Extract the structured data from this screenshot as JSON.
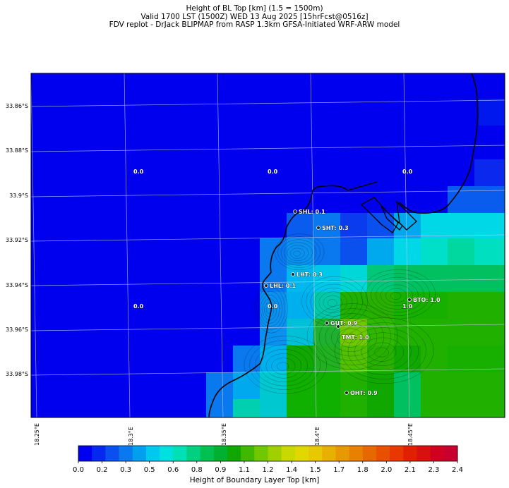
{
  "titles": {
    "line1": "Height of BL Top [km] (1.5 = 1500m)",
    "line2": "Valid 1700 LST (1500Z) WED 13 Aug 2025 [15hrFcst@0516z]",
    "line3": "FDV replot - DrJack BLIPMAP from RASP 1.3km GFSA-Initiated WRF-ARW model"
  },
  "lat_labels": [
    "33.86°S",
    "33.88°S",
    "33.9°S",
    "33.92°S",
    "33.94°S",
    "33.96°S",
    "33.98°S"
  ],
  "lon_labels": [
    "18.25°E",
    "18.3°E",
    "18.35°E",
    "18.4°E",
    "18.45°E"
  ],
  "grid_values": [
    "0.0",
    "0.0",
    "0.0",
    "0.0",
    "0.0",
    "1.0"
  ],
  "sites": [
    {
      "label": "SHL: 0.1"
    },
    {
      "label": "SHT: 0.3"
    },
    {
      "label": "LHT: 0.3"
    },
    {
      "label": "LHL: 0.1"
    },
    {
      "label": "BTO: 1.0"
    },
    {
      "label": "GUT: 0.9"
    },
    {
      "label": "TMT: 1.0"
    },
    {
      "label": "OHT: 0.9"
    }
  ],
  "colorbar": {
    "title": "Height of Boundary Layer Top [km]",
    "ticks": [
      "0.0",
      "0.2",
      "0.3",
      "0.5",
      "0.6",
      "0.8",
      "0.9",
      "1.1",
      "1.2",
      "1.4",
      "1.5",
      "1.7",
      "1.8",
      "2.0",
      "2.1",
      "2.3",
      "2.4"
    ],
    "colors": [
      "#0000ee",
      "#0528ee",
      "#0a50ee",
      "#0a78ee",
      "#00a0ee",
      "#00c8ee",
      "#00e0e0",
      "#00e0b4",
      "#00d080",
      "#00c050",
      "#00b030",
      "#10a800",
      "#40b800",
      "#70c800",
      "#a0d000",
      "#c8d800",
      "#e0d800",
      "#e8c800",
      "#e8b000",
      "#e89800",
      "#e88000",
      "#e86800",
      "#e85000",
      "#e83800",
      "#e02000",
      "#d81010",
      "#d00020",
      "#c80030"
    ]
  },
  "colors": {
    "land_lowblue": "#0000ee",
    "ocean": "#0000ee"
  }
}
